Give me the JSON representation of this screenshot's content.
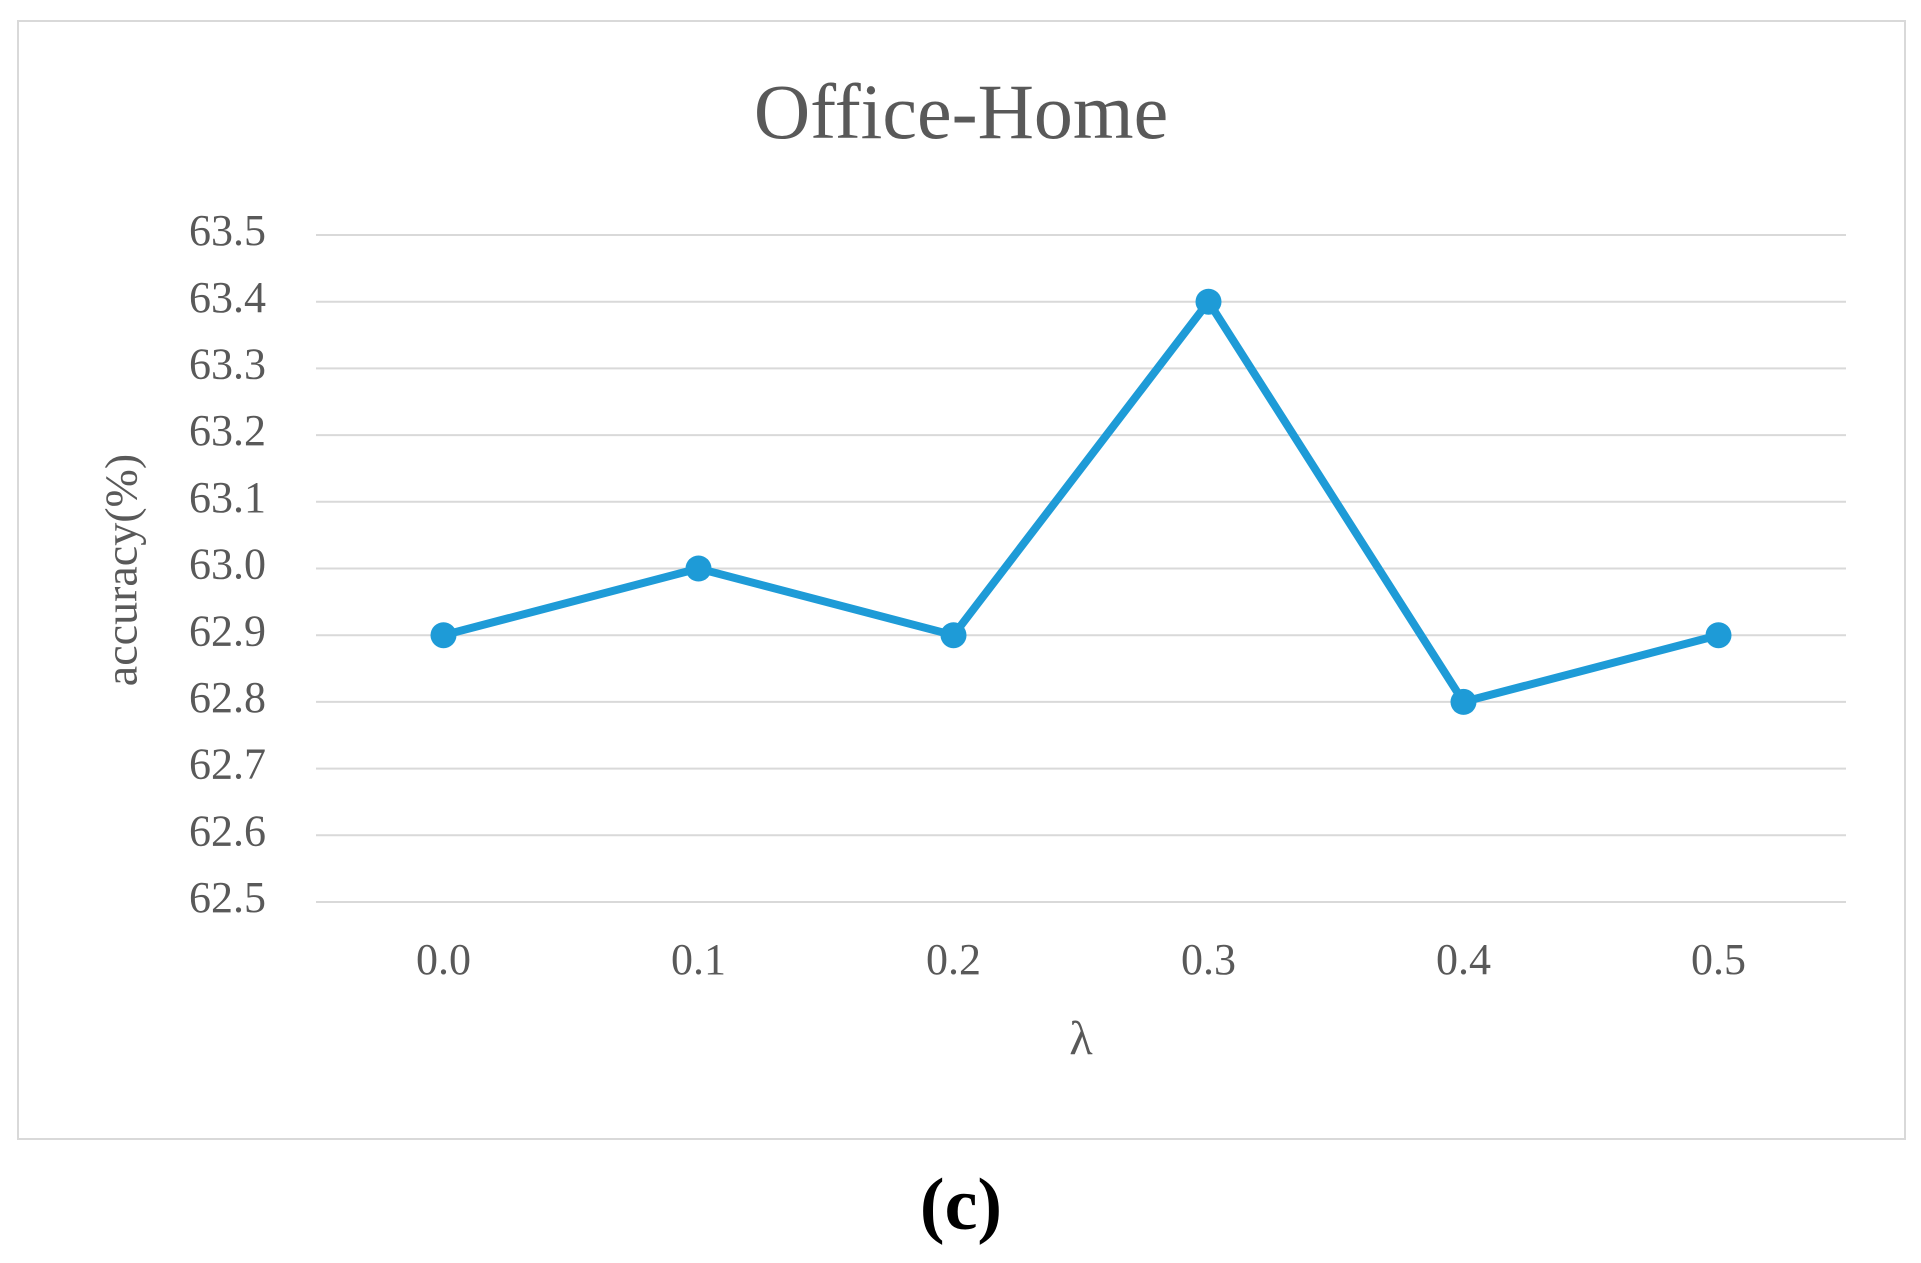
{
  "chart_data": {
    "type": "line",
    "title": "Office-Home",
    "x_label": "λ",
    "y_label": "accuracy(%)",
    "categories": [
      "0.0",
      "0.1",
      "0.2",
      "0.3",
      "0.4",
      "0.5"
    ],
    "series": [
      {
        "name": "accuracy",
        "color": "#1e9bd7",
        "values": [
          62.9,
          63.0,
          62.9,
          63.4,
          62.8,
          62.9
        ]
      }
    ],
    "ylim": [
      62.5,
      63.5
    ],
    "yticks": [
      62.5,
      62.6,
      62.7,
      62.8,
      62.9,
      {
        "value": 63,
        "label": "63.0"
      },
      63.1,
      63.2,
      63.3,
      63.4,
      63.5
    ],
    "grid": true
  },
  "caption": "(c)"
}
